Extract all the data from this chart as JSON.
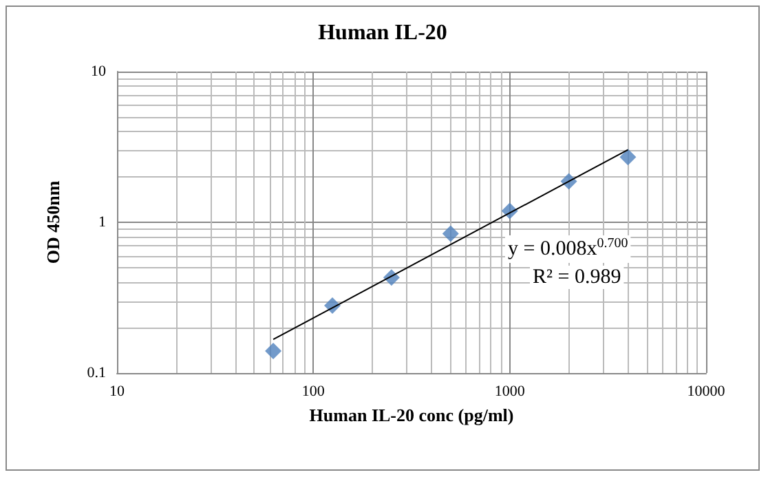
{
  "chart_data": {
    "type": "scatter",
    "title": "Human IL-20",
    "xlabel": "Human IL-20 conc (pg/ml)",
    "ylabel": "OD 450nm",
    "log": "xy",
    "grid": true,
    "marker": "diamond",
    "xlim": [
      10,
      10000
    ],
    "xticks": [
      10,
      100,
      1000,
      10000
    ],
    "ylim": [
      0.1,
      10
    ],
    "yticks": [
      0.1,
      1,
      10
    ],
    "annotations": [
      "y = 0.008x$^{0.700}$",
      "R² = 0.989"
    ],
    "series": [
      {
        "color": "#4f81bd",
        "x": [
          62.5,
          125,
          250,
          500,
          1000,
          2000,
          4000
        ],
        "values": [
          0.14,
          0.28,
          0.43,
          0.84,
          1.19,
          1.87,
          2.71
        ]
      },
      {
        "type": "line",
        "color": "#000000",
        "marker": "none",
        "line_style": "solid",
        "x": [
          62.5,
          4000
        ],
        "values": [
          0.167,
          3.03
        ]
      }
    ]
  }
}
